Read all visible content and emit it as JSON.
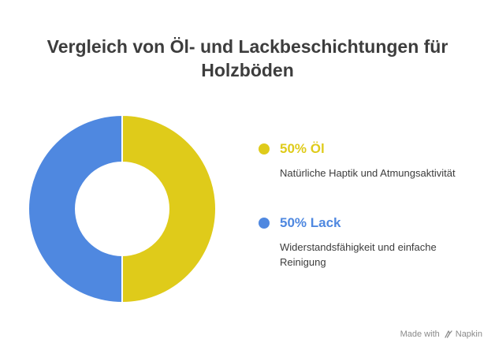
{
  "title": {
    "line1": "Vergleich von Öl- und Lackbeschichtungen für",
    "line2": "Holzböden"
  },
  "chart_data": {
    "type": "pie",
    "donut": true,
    "categories": [
      "Öl",
      "Lack"
    ],
    "values": [
      50,
      50
    ],
    "colors": [
      "#dfcb1a",
      "#4f88e0"
    ],
    "legend_placement": "right"
  },
  "legend": [
    {
      "label": "50% Öl",
      "description": "Natürliche Haptik und Atmungsaktivität",
      "color": "#dfcb1a"
    },
    {
      "label": "50% Lack",
      "description": "Widerstandsfähigkeit und einfache Reinigung",
      "color": "#4f88e0"
    }
  ],
  "watermark": {
    "prefix": "Made with",
    "brand": "Napkin",
    "icon": "napkin-logo-icon"
  }
}
